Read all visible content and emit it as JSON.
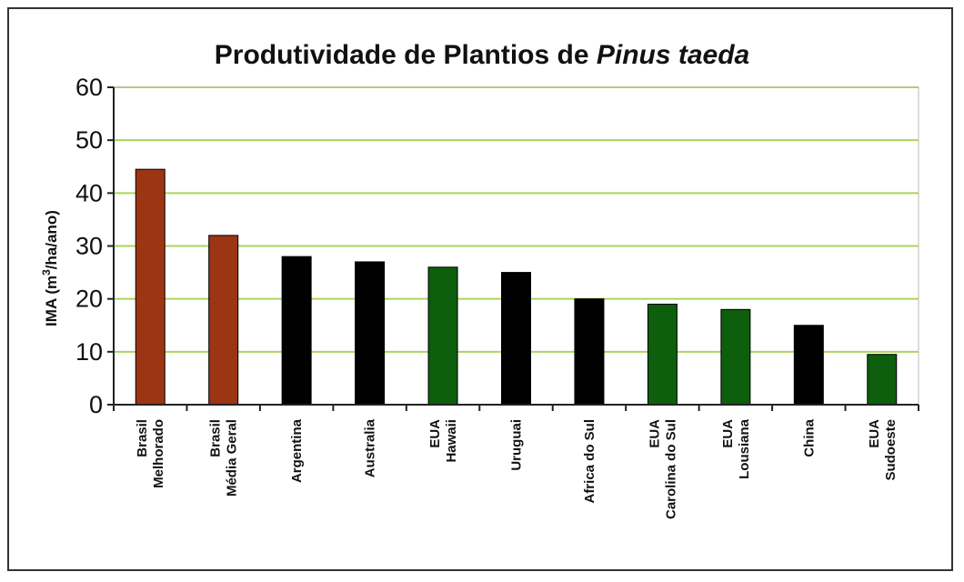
{
  "chart_data": {
    "type": "bar",
    "title": "Produtividade de Plantios de ",
    "title_italic": "Pinus taeda",
    "ylabel": "IMA (m",
    "ylabel_sup": "3",
    "ylabel_rest": "/ha/ano)",
    "xlabel": "",
    "ylim": [
      0,
      60
    ],
    "yticks": [
      0,
      10,
      20,
      30,
      40,
      50,
      60
    ],
    "grid": "horizontal",
    "categories": [
      [
        "Brasil",
        "Melhorado"
      ],
      [
        "Brasil",
        "Média Geral"
      ],
      [
        "Argentina"
      ],
      [
        "Australia"
      ],
      [
        "EUA",
        "Hawaii"
      ],
      [
        "Uruguai"
      ],
      [
        "Africa do Sul"
      ],
      [
        "EUA",
        "Carolina do Sul"
      ],
      [
        "EUA",
        "Lousiana"
      ],
      [
        "China"
      ],
      [
        "EUA",
        "Sudoeste"
      ]
    ],
    "values": [
      44.5,
      32,
      28,
      27,
      26,
      25,
      20,
      19,
      18,
      15,
      9.5
    ],
    "bar_colors": [
      "#9b3513",
      "#9b3513",
      "#000000",
      "#000000",
      "#0d5e0d",
      "#000000",
      "#000000",
      "#0d5e0d",
      "#0d5e0d",
      "#000000",
      "#0d5e0d"
    ],
    "grid_color": "#a9d65a",
    "axis_color": "#222222"
  }
}
